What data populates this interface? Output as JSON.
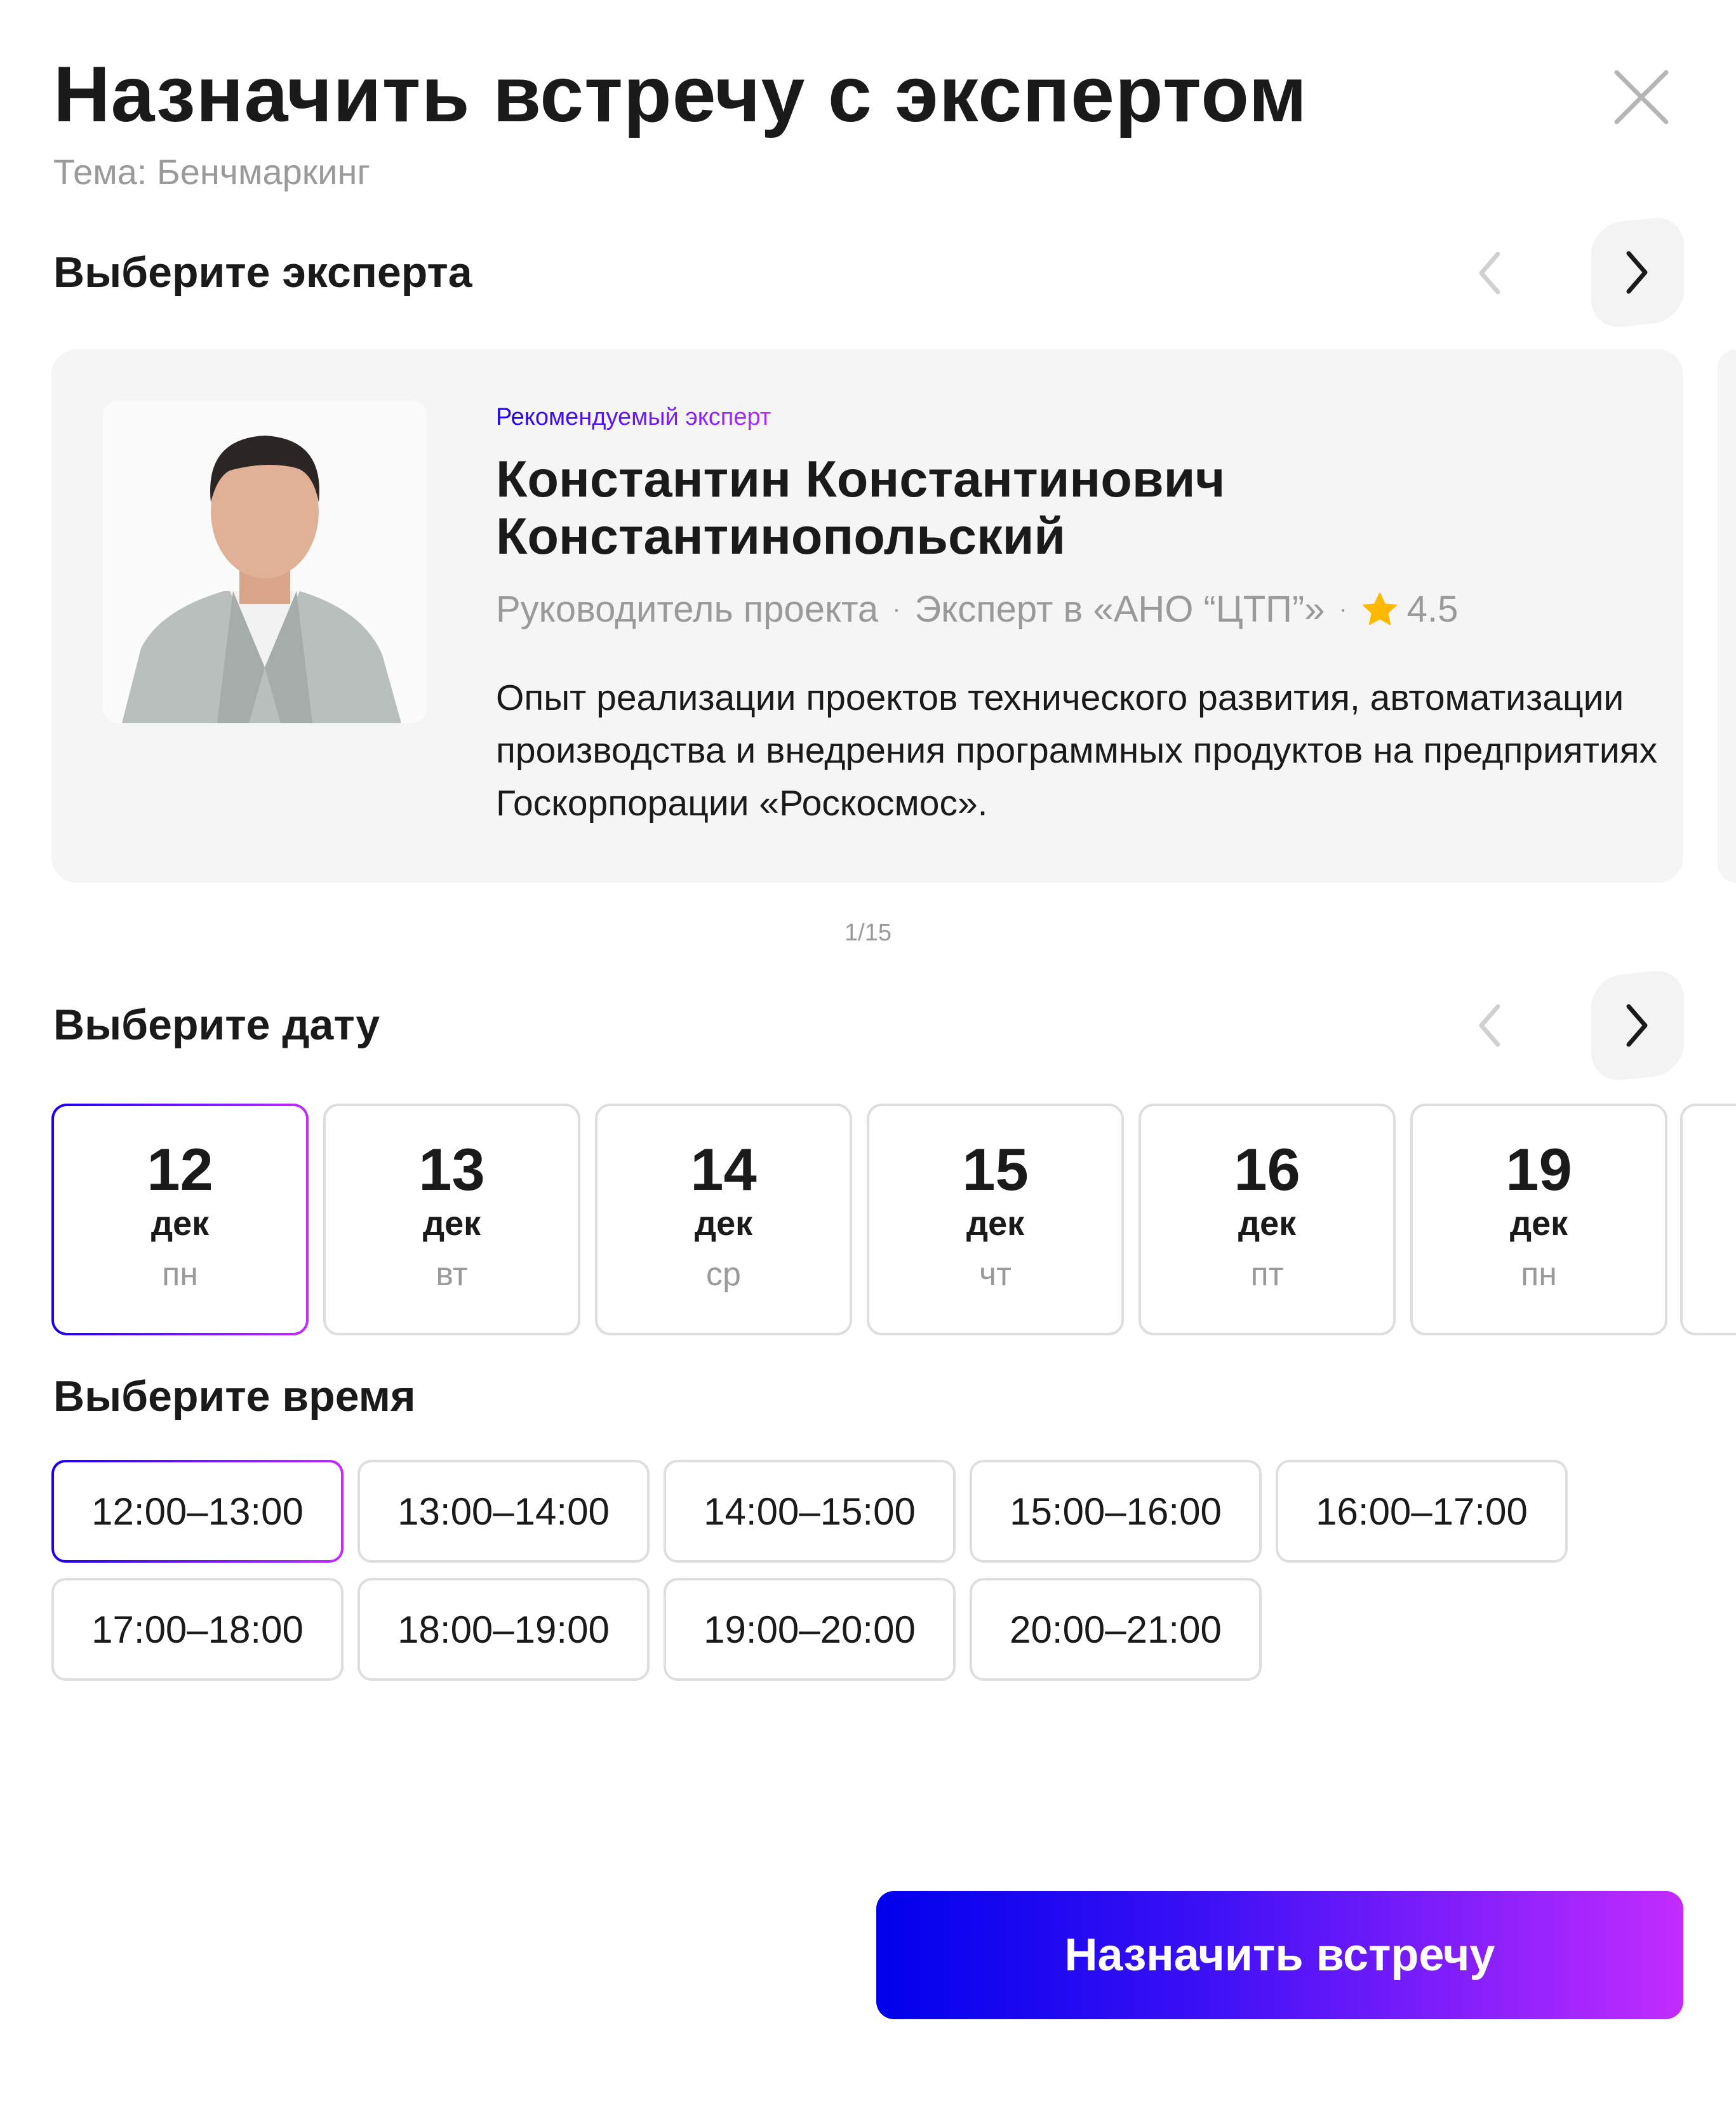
{
  "header": {
    "title": "Назначить встречу с экспертом",
    "subtitle": "Тема: Бенчмаркинг"
  },
  "expert_section": {
    "heading": "Выберите эксперта",
    "badge": "Рекомендуемый эксперт",
    "name_line1": "Константин Константинович",
    "name_line2": "Константинопольский",
    "role": "Руководитель проекта",
    "affiliation": "Эксперт в «АНО “ЦТП”»",
    "rating": "4.5",
    "description": "Опыт реализации проектов технического развития, автоматизации производства и внедрения программных продуктов на предприятиях Госкорпорации «Роскосмос».",
    "pager": "1/15"
  },
  "date_section": {
    "heading": "Выберите дату",
    "dates": [
      {
        "day": "12",
        "month": "дек",
        "weekday": "пн",
        "selected": true
      },
      {
        "day": "13",
        "month": "дек",
        "weekday": "вт"
      },
      {
        "day": "14",
        "month": "дек",
        "weekday": "ср"
      },
      {
        "day": "15",
        "month": "дек",
        "weekday": "чт"
      },
      {
        "day": "16",
        "month": "дек",
        "weekday": "пт"
      },
      {
        "day": "19",
        "month": "дек",
        "weekday": "пн"
      }
    ]
  },
  "time_section": {
    "heading": "Выберите время",
    "slots": [
      "12:00–13:00",
      "13:00–14:00",
      "14:00–15:00",
      "15:00–16:00",
      "16:00–17:00",
      "17:00–18:00",
      "18:00–19:00",
      "19:00–20:00",
      "20:00–21:00"
    ],
    "selected": "12:00–13:00"
  },
  "submit_label": "Назначить встречу",
  "colors": {
    "accent_start": "#0000ec",
    "accent_end": "#c22cff",
    "star": "#ffb800",
    "card_bg": "#f5f5f5"
  }
}
